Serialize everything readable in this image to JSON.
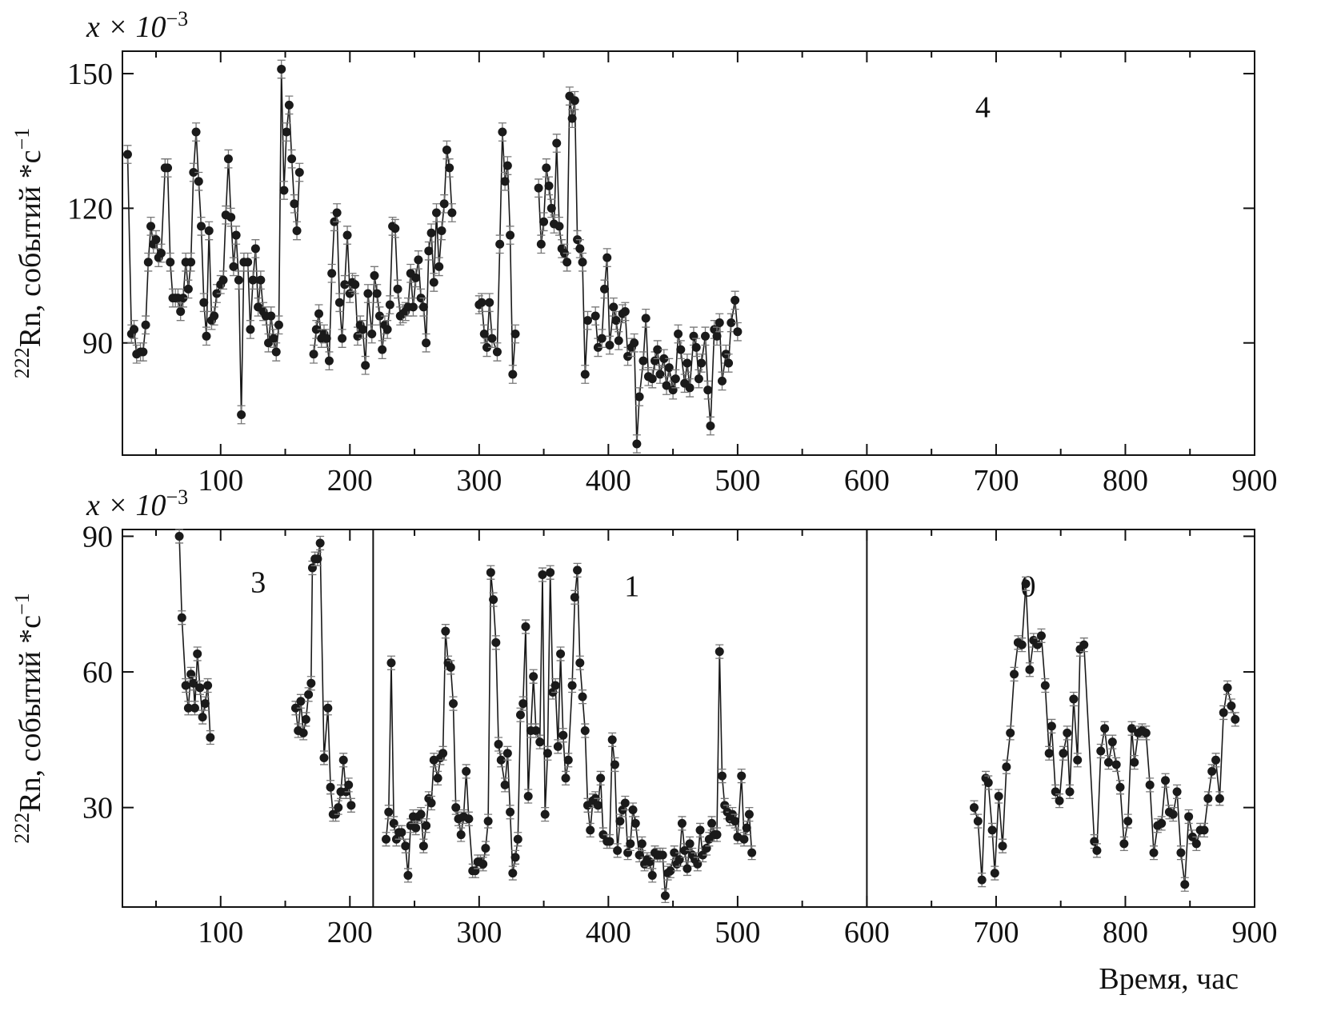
{
  "chart_data": [
    {
      "type": "line",
      "scale_label": {
        "base": "x × 10",
        "exponent": "−3"
      },
      "ylabel": {
        "isotope": "222",
        "text": "Rn, событий *с",
        "exponent": "−1"
      },
      "annotations": [
        "4"
      ],
      "xlim": [
        24,
        900
      ],
      "ylim": [
        65,
        155
      ],
      "xticks": [
        100,
        200,
        300,
        400,
        500,
        600,
        700,
        800,
        900
      ],
      "xminor_ticks": [
        50,
        150,
        250,
        350,
        450,
        550,
        650,
        750,
        850
      ],
      "yticks": [
        90,
        120,
        150
      ],
      "series": [
        {
          "color": "#1a1a1a",
          "error": 2,
          "x": [
            28,
            31,
            33,
            35,
            38,
            40,
            42,
            44,
            46,
            48,
            50,
            52,
            54,
            57,
            59,
            61,
            63,
            65,
            67,
            69,
            71,
            73,
            75,
            77,
            79,
            81,
            83,
            85,
            87,
            89,
            91,
            93,
            95,
            97,
            100,
            102,
            104,
            106,
            108,
            110,
            112,
            114,
            116,
            118,
            121,
            123,
            125,
            127,
            129,
            131,
            133,
            135,
            137,
            139,
            141,
            143,
            145,
            147,
            149,
            151,
            153,
            155,
            157,
            159,
            161,
            166,
            172,
            174,
            176,
            178,
            180,
            182,
            184,
            186,
            188,
            190,
            192,
            194,
            196,
            198,
            200,
            202,
            204,
            206,
            208,
            210,
            212,
            214,
            217,
            219,
            221,
            223,
            225,
            227,
            229,
            231,
            233,
            235,
            237,
            239,
            241,
            243,
            245,
            247,
            249,
            251,
            253,
            255,
            257,
            259,
            261,
            263,
            265,
            267,
            269,
            271,
            273,
            275,
            277,
            279,
            290,
            300,
            302,
            304,
            306,
            308,
            310,
            314,
            316,
            318,
            320,
            322,
            324,
            326,
            328,
            337,
            346,
            348,
            350,
            352,
            354,
            356,
            358,
            360,
            362,
            364,
            366,
            368,
            370,
            372,
            374,
            376,
            378,
            380,
            382,
            384,
            390,
            392,
            395,
            397,
            399,
            401,
            404,
            406,
            408,
            411,
            413,
            415,
            418,
            420,
            422,
            424,
            427,
            429,
            431,
            434,
            436,
            438,
            440,
            443,
            445,
            447,
            450,
            452,
            454,
            456,
            459,
            461,
            463,
            466,
            468,
            470,
            472,
            475,
            477,
            479,
            482,
            484,
            486,
            488,
            491,
            493,
            495,
            498,
            500
          ],
          "values": [
            132,
            92,
            93,
            87.5,
            88,
            88,
            94,
            108,
            116,
            112,
            113,
            109,
            110,
            129,
            129,
            108,
            100,
            100,
            100,
            97,
            100,
            108,
            102,
            108,
            128,
            137,
            126,
            116,
            99,
            91.5,
            115,
            95,
            96,
            101,
            103,
            104,
            118.5,
            131,
            118,
            107,
            114,
            104,
            74,
            108,
            108,
            93,
            104,
            111,
            98,
            104,
            97,
            96,
            90,
            96,
            91,
            88,
            94,
            151,
            124,
            137,
            143,
            131,
            121,
            115,
            128,
            null,
            87.5,
            93,
            96.5,
            91,
            92,
            91,
            86,
            105.5,
            117,
            119,
            99,
            91,
            103,
            114,
            101,
            103.5,
            103,
            91.5,
            94,
            93,
            85,
            101,
            92,
            105,
            101,
            96,
            88.5,
            94,
            93,
            98.5,
            116,
            115.5,
            102,
            96,
            96.5,
            97,
            98,
            105.5,
            98,
            104.5,
            108.5,
            100,
            98,
            90,
            110.5,
            114.5,
            103.5,
            119,
            107,
            115,
            121,
            133,
            129,
            119,
            null,
            98.5,
            99,
            92,
            89,
            99,
            91,
            88,
            112,
            137,
            126,
            129.5,
            114,
            83,
            92,
            null,
            124.5,
            112,
            117,
            129,
            125,
            120,
            116.5,
            134.5,
            116,
            111,
            110,
            108,
            145,
            140,
            144,
            113,
            111,
            108,
            83,
            95,
            96,
            89,
            91,
            102,
            109,
            89.5,
            98,
            95,
            90.5,
            96.5,
            97,
            87,
            89,
            90,
            67.5,
            78,
            86,
            95.5,
            82.5,
            82,
            86,
            88.5,
            83,
            86.5,
            80.5,
            84.5,
            79.5,
            82,
            92,
            88.5,
            81,
            85.5,
            80,
            91.5,
            89,
            82,
            85.5,
            91.5,
            79.5,
            71.5,
            93,
            91.5,
            94.5,
            81.5,
            87.5,
            85.5,
            94.5,
            99.5,
            92.5
          ]
        }
      ]
    },
    {
      "type": "line",
      "scale_label": {
        "base": "x × 10",
        "exponent": "−3"
      },
      "ylabel": {
        "isotope": "222",
        "text": "Rn, событий *с",
        "exponent": "−1"
      },
      "xlabel": "Время, час",
      "annotations": [
        "3",
        "1",
        "0"
      ],
      "separators": [
        218,
        600
      ],
      "xlim": [
        24,
        900
      ],
      "ylim": [
        8,
        91.5
      ],
      "xticks": [
        100,
        200,
        300,
        400,
        500,
        600,
        700,
        800,
        900
      ],
      "xminor_ticks": [
        50,
        150,
        250,
        350,
        450,
        550,
        650,
        750,
        850
      ],
      "yticks": [
        30,
        60,
        90
      ],
      "series": [
        {
          "color": "#1a1a1a",
          "error": 1.5,
          "x": [
            68,
            70,
            73,
            75,
            77,
            79,
            80,
            82,
            84,
            86,
            88,
            90,
            92,
            125,
            158,
            160,
            162,
            164,
            166,
            168,
            170,
            171,
            173,
            175,
            177,
            180,
            183,
            185,
            187,
            189,
            191,
            193,
            195,
            197,
            199,
            201,
            215,
            228,
            230,
            232,
            234,
            236,
            238,
            240,
            243,
            245,
            247,
            249,
            251,
            253,
            255,
            257,
            259,
            261,
            263,
            265,
            268,
            270,
            272,
            274,
            276,
            278,
            280,
            282,
            284,
            286,
            288,
            290,
            292,
            295,
            297,
            299,
            301,
            303,
            305,
            307,
            309,
            311,
            313,
            315,
            317,
            320,
            322,
            324,
            326,
            328,
            330,
            332,
            334,
            336,
            338,
            340,
            342,
            344,
            347,
            349,
            351,
            353,
            355,
            357,
            359,
            361,
            363,
            365,
            367,
            369,
            372,
            374,
            376,
            378,
            380,
            382,
            384,
            386,
            388,
            390,
            392,
            394,
            396,
            399,
            401,
            403,
            405,
            407,
            409,
            411,
            413,
            415,
            417,
            419,
            421,
            424,
            426,
            428,
            430,
            432,
            434,
            436,
            438,
            440,
            442,
            444,
            446,
            448,
            451,
            453,
            455,
            457,
            459,
            461,
            463,
            465,
            467,
            469,
            471,
            473,
            476,
            478,
            480,
            482,
            484,
            486,
            488,
            490,
            492,
            494,
            496,
            498,
            500,
            503,
            505,
            507,
            509,
            511,
            600,
            683,
            686,
            689,
            692,
            694,
            697,
            699,
            702,
            705,
            708,
            711,
            714,
            717,
            720,
            723,
            726,
            729,
            732,
            735,
            738,
            741,
            743,
            746,
            749,
            752,
            755,
            757,
            760,
            763,
            765,
            768,
            776,
            778,
            781,
            784,
            787,
            790,
            793,
            796,
            799,
            802,
            805,
            807,
            810,
            813,
            816,
            819,
            822,
            825,
            828,
            831,
            834,
            837,
            840,
            843,
            846,
            849,
            852,
            855,
            858,
            861,
            864,
            867,
            870,
            873,
            876,
            879,
            882,
            885
          ],
          "values": [
            90,
            72,
            57,
            52,
            59.5,
            57.5,
            52,
            64,
            56.5,
            50,
            53,
            57,
            45.5,
            null,
            52,
            47,
            53.5,
            46.5,
            49.5,
            55,
            57.5,
            83,
            85,
            85,
            88.5,
            41,
            52,
            34.5,
            28.5,
            28.5,
            30,
            33.5,
            40.5,
            33.5,
            35,
            30.5,
            null,
            23,
            29,
            62,
            26.5,
            23,
            24.5,
            24.5,
            21.5,
            15,
            26,
            28,
            25.5,
            28,
            28.5,
            21.5,
            26,
            32,
            31,
            40.5,
            36.5,
            41,
            42,
            69,
            62,
            61,
            53,
            30,
            27.5,
            24,
            28,
            38,
            27.5,
            16,
            16,
            18,
            18,
            17.5,
            21,
            27,
            82,
            76,
            66.5,
            44,
            40.5,
            35,
            42,
            29,
            15.5,
            19,
            23,
            50.5,
            53,
            70,
            32.5,
            47,
            59,
            47,
            44.5,
            81.5,
            28.5,
            42,
            82,
            55.5,
            57,
            43.5,
            64,
            46,
            36.5,
            40.5,
            57,
            76.5,
            82.5,
            62,
            54.5,
            47,
            30.5,
            25,
            31.5,
            32,
            30.5,
            36.5,
            24,
            22.5,
            22.5,
            45,
            39.5,
            20.5,
            27,
            29.5,
            31,
            20,
            22,
            29.5,
            26.5,
            19.5,
            22,
            17.5,
            18.5,
            18,
            15,
            20,
            19.5,
            19.5,
            19.5,
            10.5,
            15.5,
            16,
            20,
            17.5,
            18.5,
            26.5,
            20.5,
            16.5,
            22,
            19.5,
            18.5,
            17.5,
            25,
            19.5,
            21,
            23,
            26.5,
            24,
            24,
            64.5,
            37,
            30.5,
            29,
            27.5,
            28.5,
            27,
            23.5,
            37,
            23,
            25.5,
            28.5,
            20,
            null,
            30,
            27,
            14,
            36.5,
            35.5,
            25,
            15.5,
            32.5,
            21.5,
            39,
            46.5,
            59.5,
            66.5,
            66,
            79.5,
            60.5,
            67,
            66,
            68,
            57,
            42,
            48,
            33.5,
            31.5,
            42,
            46.5,
            33.5,
            54,
            40.5,
            65,
            66,
            22.5,
            20.5,
            42.5,
            47.5,
            40,
            44.5,
            39.5,
            34.5,
            22,
            27,
            47.5,
            40,
            46.5,
            47,
            46.5,
            35,
            20,
            26,
            26.5,
            36,
            29,
            28.5,
            33.5,
            20,
            13,
            28,
            23.5,
            22,
            25,
            25,
            32,
            38,
            40.5,
            32,
            51,
            56.5,
            52.5,
            49.5
          ]
        }
      ]
    }
  ]
}
